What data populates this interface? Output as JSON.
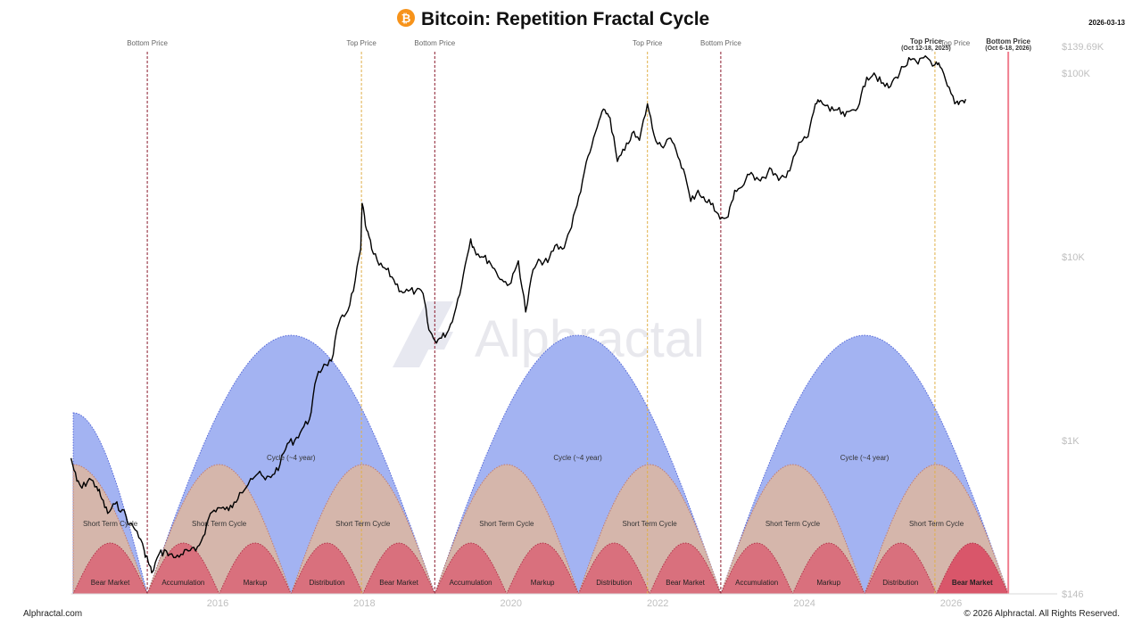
{
  "header": {
    "title": "Bitcoin: Repetition Fractal Cycle",
    "date": "2026-03-13"
  },
  "footer": {
    "left": "Alphractal.com",
    "right": "© 2026 Alphractal. All Rights Reserved."
  },
  "watermark": "Alphractal",
  "colors": {
    "bg": "#ffffff",
    "price_line": "#000000",
    "big_cycle": "#a3b3f2",
    "short_cycle": "#d7b7a9",
    "bear_phase": "#d9707d",
    "bear_phase_current": "#d9566a",
    "bottom_line": "#8b1a2c",
    "top_line": "#e0b04a",
    "current_bottom_line": "#f08090",
    "logo": "#f7931a",
    "axis_text": "#bfbfbf"
  },
  "chart_data": {
    "type": "line",
    "title": "Bitcoin: Repetition Fractal Cycle",
    "x_range": [
      2013.8,
      2027.3
    ],
    "x_ticks": [
      2016,
      2018,
      2020,
      2022,
      2024,
      2026
    ],
    "y_scale": "log",
    "y_range": [
      146,
      139690
    ],
    "y_ticks": [
      {
        "value": 146,
        "label": "$146"
      },
      {
        "value": 1000,
        "label": "$1K"
      },
      {
        "value": 10000,
        "label": "$10K"
      },
      {
        "value": 100000,
        "label": "$100K"
      },
      {
        "value": 139690,
        "label": "$139.69K"
      }
    ],
    "series": [
      {
        "name": "BTC price",
        "x": [
          2014.0,
          2014.08,
          2014.15,
          2014.25,
          2014.35,
          2014.42,
          2014.5,
          2014.6,
          2014.7,
          2014.8,
          2014.9,
          2015.0,
          2015.05,
          2015.1,
          2015.2,
          2015.3,
          2015.4,
          2015.5,
          2015.6,
          2015.7,
          2015.8,
          2015.9,
          2016.0,
          2016.1,
          2016.2,
          2016.3,
          2016.45,
          2016.55,
          2016.65,
          2016.75,
          2016.85,
          2016.95,
          2017.05,
          2017.15,
          2017.25,
          2017.35,
          2017.45,
          2017.55,
          2017.65,
          2017.75,
          2017.85,
          2017.95,
          2017.97,
          2018.03,
          2018.1,
          2018.2,
          2018.3,
          2018.4,
          2018.5,
          2018.6,
          2018.7,
          2018.8,
          2018.88,
          2018.96,
          2019.05,
          2019.15,
          2019.25,
          2019.35,
          2019.45,
          2019.5,
          2019.6,
          2019.7,
          2019.8,
          2019.9,
          2020.0,
          2020.1,
          2020.2,
          2020.3,
          2020.4,
          2020.5,
          2020.6,
          2020.7,
          2020.8,
          2020.9,
          2021.0,
          2021.1,
          2021.2,
          2021.28,
          2021.35,
          2021.45,
          2021.55,
          2021.65,
          2021.75,
          2021.86,
          2021.95,
          2022.05,
          2022.15,
          2022.25,
          2022.35,
          2022.45,
          2022.55,
          2022.65,
          2022.75,
          2022.85,
          2022.96,
          2023.05,
          2023.15,
          2023.25,
          2023.35,
          2023.45,
          2023.55,
          2023.65,
          2023.75,
          2023.85,
          2023.95,
          2024.05,
          2024.15,
          2024.22,
          2024.35,
          2024.45,
          2024.55,
          2024.65,
          2024.75,
          2024.85,
          2024.95,
          2025.05,
          2025.15,
          2025.25,
          2025.35,
          2025.45,
          2025.55,
          2025.65,
          2025.78,
          2025.85,
          2025.95,
          2026.05,
          2026.12,
          2026.2
        ],
        "y": [
          800,
          600,
          550,
          620,
          560,
          480,
          400,
          450,
          420,
          350,
          320,
          250,
          220,
          190,
          240,
          250,
          230,
          240,
          250,
          250,
          300,
          400,
          430,
          420,
          430,
          520,
          620,
          660,
          610,
          650,
          740,
          960,
          1000,
          1150,
          1300,
          2200,
          2600,
          2700,
          4300,
          4900,
          6500,
          11000,
          19500,
          14000,
          11000,
          9000,
          8500,
          7500,
          6500,
          6500,
          6500,
          6300,
          4000,
          3500,
          3600,
          4000,
          5300,
          8000,
          12500,
          11000,
          10000,
          9500,
          8200,
          7300,
          7200,
          9500,
          5000,
          8500,
          9500,
          9300,
          11500,
          11000,
          13800,
          19000,
          29000,
          40000,
          55000,
          63000,
          57000,
          33000,
          38000,
          47000,
          43000,
          68000,
          46000,
          40000,
          44000,
          38000,
          30000,
          20000,
          23000,
          20000,
          19500,
          16000,
          16500,
          23000,
          24000,
          28000,
          27000,
          27000,
          30000,
          26000,
          27000,
          35000,
          42000,
          45000,
          68000,
          71000,
          62000,
          63000,
          58000,
          63000,
          68000,
          95000,
          100000,
          88000,
          83000,
          95000,
          108000,
          118000,
          112000,
          124000,
          111000,
          108000,
          85000,
          68000,
          70000,
          72000
        ]
      }
    ],
    "vertical_markers": [
      {
        "x": 2015.04,
        "kind": "bottom",
        "label": "Bottom Price"
      },
      {
        "x": 2017.96,
        "kind": "top",
        "label": "Top Price"
      },
      {
        "x": 2018.96,
        "kind": "bottom",
        "label": "Bottom Price"
      },
      {
        "x": 2021.86,
        "kind": "top",
        "label": "Top Price"
      },
      {
        "x": 2022.86,
        "kind": "bottom",
        "label": "Bottom Price"
      },
      {
        "x": 2025.78,
        "kind": "top",
        "label": "Top Price",
        "sublabel": "Top Price",
        "range": "(Oct 12-18, 2025)"
      },
      {
        "x": 2026.78,
        "kind": "current_bottom",
        "label": "Bottom Price",
        "range": "(Oct 6-18, 2026)"
      }
    ],
    "big_cycles": [
      {
        "start": 2015.04,
        "end": 2018.96,
        "label": "Cycle (~4 year)"
      },
      {
        "start": 2018.96,
        "end": 2022.86,
        "label": "Cycle (~4 year)"
      },
      {
        "start": 2022.86,
        "end": 2026.78,
        "label": "Cycle (~4 year)"
      }
    ],
    "partial_cycle": {
      "start": 2014.03,
      "end": 2015.04,
      "peak_at": 2014.03
    },
    "short_cycles": [
      {
        "start": 2014.03,
        "end": 2015.04,
        "label": "Short Term Cycle",
        "partial": true
      },
      {
        "start": 2015.04,
        "end": 2017.0,
        "label": "Short Term Cycle"
      },
      {
        "start": 2017.0,
        "end": 2018.96,
        "label": "Short Term Cycle"
      },
      {
        "start": 2018.96,
        "end": 2020.92,
        "label": "Short Term Cycle"
      },
      {
        "start": 2020.92,
        "end": 2022.86,
        "label": "Short Term Cycle"
      },
      {
        "start": 2022.86,
        "end": 2024.82,
        "label": "Short Term Cycle"
      },
      {
        "start": 2024.82,
        "end": 2026.78,
        "label": "Short Term Cycle"
      }
    ],
    "phases": [
      {
        "start": 2014.03,
        "end": 2015.04,
        "label": "Bear Market"
      },
      {
        "start": 2015.04,
        "end": 2016.02,
        "label": "Accumulation"
      },
      {
        "start": 2016.02,
        "end": 2017.0,
        "label": "Markup"
      },
      {
        "start": 2017.0,
        "end": 2017.98,
        "label": "Distribution"
      },
      {
        "start": 2017.98,
        "end": 2018.96,
        "label": "Bear Market"
      },
      {
        "start": 2018.96,
        "end": 2019.94,
        "label": "Accumulation"
      },
      {
        "start": 2019.94,
        "end": 2020.92,
        "label": "Markup"
      },
      {
        "start": 2020.92,
        "end": 2021.89,
        "label": "Distribution"
      },
      {
        "start": 2021.89,
        "end": 2022.86,
        "label": "Bear Market"
      },
      {
        "start": 2022.86,
        "end": 2023.84,
        "label": "Accumulation"
      },
      {
        "start": 2023.84,
        "end": 2024.82,
        "label": "Markup"
      },
      {
        "start": 2024.82,
        "end": 2025.8,
        "label": "Distribution"
      },
      {
        "start": 2025.8,
        "end": 2026.78,
        "label": "Bear Market",
        "current": true
      }
    ]
  }
}
